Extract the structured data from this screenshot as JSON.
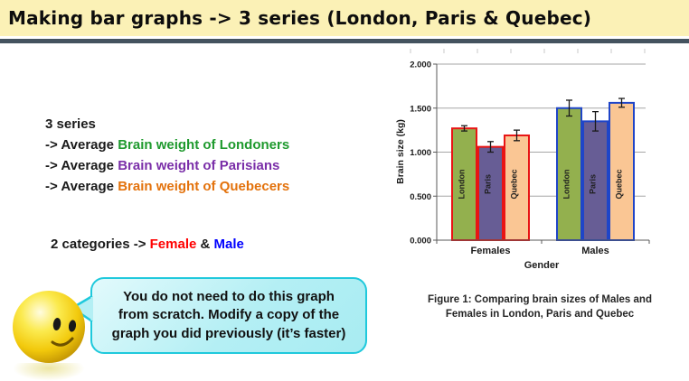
{
  "header": {
    "title": "Making bar graphs -> 3 series (London, Paris & Quebec)"
  },
  "notes": {
    "series_heading": "3 series",
    "series_items": [
      {
        "prefix": "-> Average ",
        "colored": "Brain weight of Londoners",
        "color": "#1F9A2E"
      },
      {
        "prefix": "-> Average ",
        "colored": "Brain weight of Parisians",
        "color": "#7A2EA8"
      },
      {
        "prefix": "-> Average ",
        "colored": "Brain weight of Quebecers",
        "color": "#E3720C"
      }
    ],
    "categories_line": {
      "prefix": "2 categories -> ",
      "female": "Female",
      "female_color": "#FF0000",
      "amp": " & ",
      "male": "Male",
      "male_color": "#0000FF"
    }
  },
  "bubble": {
    "text": "You do not need to do this graph from scratch. Modify a copy of the graph you did previously (it’s faster)"
  },
  "chart_data": {
    "type": "bar",
    "title": "",
    "xlabel": "Gender",
    "ylabel": "Brain size (kg)",
    "categories": [
      "Females",
      "Males"
    ],
    "series": [
      {
        "name": "London",
        "values": [
          1.27,
          1.5
        ],
        "errors": [
          0.03,
          0.09
        ],
        "fill": "#93B04E"
      },
      {
        "name": "Paris",
        "values": [
          1.06,
          1.35
        ],
        "errors": [
          0.06,
          0.11
        ],
        "fill": "#675D95"
      },
      {
        "name": "Quebec",
        "values": [
          1.19,
          1.56
        ],
        "errors": [
          0.06,
          0.05
        ],
        "fill": "#FAC694"
      }
    ],
    "group_outline_colors": [
      "#E81414",
      "#1F45C8"
    ],
    "ylim": [
      0,
      2
    ],
    "yticks": [
      "0.000",
      "0.500",
      "1.000",
      "1.500",
      "2.000"
    ],
    "grid": true,
    "legend": "none",
    "bar_labels_inside": true
  },
  "figure": {
    "caption": "Figure 1: Comparing brain sizes of Males and Females in London, Paris and Quebec"
  },
  "colors": {
    "title_band_bg": "#FBF1B6",
    "divider_bar": "#44535F",
    "bubble_fill": "#B4EFF4",
    "bubble_border": "#1FC9DC",
    "smiley_yellow": "#F8D715"
  }
}
